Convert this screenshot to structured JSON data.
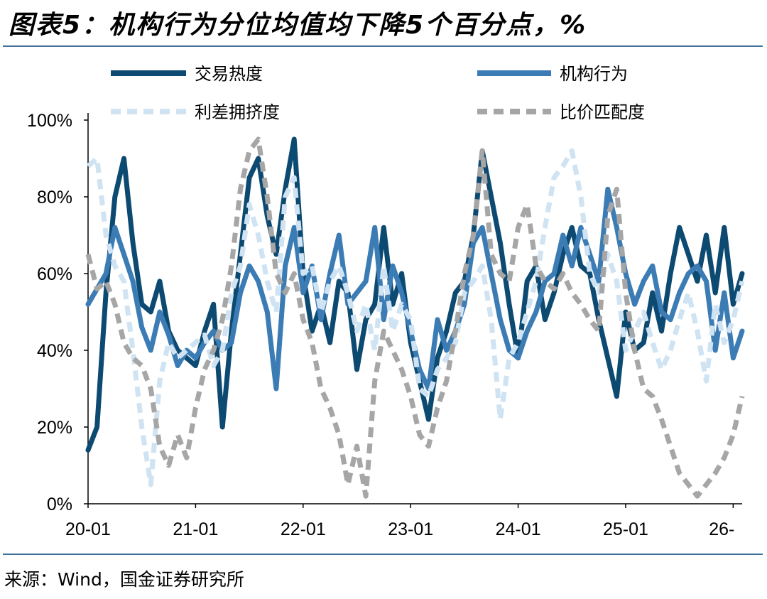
{
  "title": "图表5：机构行为分位均值均下降5个百分点，%",
  "source": "来源：Wind，国金证券研究所",
  "chart_data": {
    "type": "line",
    "title": "图表5：机构行为分位均值均下降5个百分点，%",
    "ylim": [
      0,
      100
    ],
    "xlim": [
      0,
      73
    ],
    "x_start": "2020-01",
    "y_ticks": [
      "0%",
      "20%",
      "40%",
      "60%",
      "80%",
      "100%"
    ],
    "x_ticks": [
      {
        "label": "20-01",
        "x": 0
      },
      {
        "label": "21-01",
        "x": 12
      },
      {
        "label": "22-01",
        "x": 24
      },
      {
        "label": "23-01",
        "x": 36
      },
      {
        "label": "24-01",
        "x": 48
      },
      {
        "label": "25-01",
        "x": 60
      },
      {
        "label": "26-",
        "x": 72
      }
    ],
    "legend_position": "top",
    "grid": false,
    "series": [
      {
        "name": "交易热度",
        "color": "#0d4a72",
        "style": "solid",
        "x": [
          0,
          1,
          2,
          3,
          4,
          5,
          6,
          7,
          8,
          9,
          10,
          11,
          12,
          13,
          14,
          15,
          16,
          17,
          18,
          19,
          20,
          21,
          22,
          23,
          24,
          25,
          26,
          27,
          28,
          29,
          30,
          31,
          32,
          33,
          34,
          35,
          36,
          37,
          38,
          39,
          40,
          41,
          42,
          43,
          44,
          45,
          46,
          47,
          48,
          49,
          50,
          51,
          52,
          53,
          54,
          55,
          56,
          57,
          58,
          59,
          60,
          61,
          62,
          63,
          64,
          65,
          66,
          67,
          68,
          69,
          70,
          71,
          72,
          73
        ],
        "values": [
          14,
          20,
          55,
          80,
          90,
          68,
          52,
          50,
          58,
          45,
          40,
          38,
          36,
          45,
          52,
          20,
          45,
          65,
          85,
          90,
          75,
          65,
          82,
          95,
          60,
          45,
          52,
          42,
          58,
          55,
          35,
          48,
          52,
          72,
          52,
          60,
          42,
          32,
          22,
          38,
          45,
          55,
          58,
          70,
          92,
          80,
          68,
          52,
          38,
          58,
          62,
          48,
          55,
          65,
          72,
          62,
          60,
          48,
          38,
          28,
          50,
          40,
          42,
          55,
          45,
          60,
          72,
          65,
          58,
          70,
          55,
          72,
          52,
          60
        ]
      },
      {
        "name": "机构行为",
        "color": "#3c7cb5",
        "style": "solid",
        "x": [
          0,
          1,
          2,
          3,
          4,
          5,
          6,
          7,
          8,
          9,
          10,
          11,
          12,
          13,
          14,
          15,
          16,
          17,
          18,
          19,
          20,
          21,
          22,
          23,
          24,
          25,
          26,
          27,
          28,
          29,
          30,
          31,
          32,
          33,
          34,
          35,
          36,
          37,
          38,
          39,
          40,
          41,
          42,
          43,
          44,
          45,
          46,
          47,
          48,
          49,
          50,
          51,
          52,
          53,
          54,
          55,
          56,
          57,
          58,
          59,
          60,
          61,
          62,
          63,
          64,
          65,
          66,
          67,
          68,
          69,
          70,
          71,
          72,
          73
        ],
        "values": [
          52,
          56,
          60,
          72,
          65,
          58,
          46,
          40,
          50,
          44,
          36,
          40,
          38,
          42,
          45,
          40,
          42,
          55,
          62,
          58,
          50,
          30,
          62,
          72,
          55,
          62,
          48,
          60,
          70,
          52,
          55,
          58,
          72,
          48,
          62,
          55,
          45,
          35,
          30,
          48,
          40,
          45,
          52,
          68,
          72,
          60,
          48,
          40,
          38,
          45,
          50,
          58,
          60,
          70,
          62,
          72,
          65,
          58,
          82,
          72,
          60,
          52,
          58,
          62,
          50,
          48,
          55,
          60,
          62,
          58,
          40,
          55,
          38,
          45
        ]
      },
      {
        "name": "利差拥挤度",
        "color": "#cfe3f3",
        "style": "dashed",
        "x": [
          0,
          1,
          2,
          3,
          4,
          5,
          6,
          7,
          8,
          9,
          10,
          11,
          12,
          13,
          14,
          15,
          16,
          17,
          18,
          19,
          20,
          21,
          22,
          23,
          24,
          25,
          26,
          27,
          28,
          29,
          30,
          31,
          32,
          33,
          34,
          35,
          36,
          37,
          38,
          39,
          40,
          41,
          42,
          43,
          44,
          45,
          46,
          47,
          48,
          49,
          50,
          51,
          52,
          53,
          54,
          55,
          56,
          57,
          58,
          59,
          60,
          61,
          62,
          63,
          64,
          65,
          66,
          67,
          68,
          69,
          70,
          71,
          72,
          73
        ],
        "values": [
          88,
          90,
          70,
          62,
          58,
          40,
          20,
          5,
          32,
          42,
          38,
          40,
          42,
          44,
          36,
          40,
          55,
          62,
          78,
          70,
          58,
          50,
          80,
          85,
          60,
          62,
          50,
          58,
          62,
          55,
          45,
          52,
          40,
          62,
          45,
          52,
          48,
          30,
          28,
          35,
          38,
          42,
          55,
          58,
          62,
          48,
          22,
          38,
          42,
          50,
          58,
          72,
          85,
          88,
          92,
          80,
          60,
          55,
          65,
          58,
          40,
          45,
          50,
          42,
          35,
          40,
          48,
          55,
          45,
          32,
          52,
          42,
          48,
          58
        ]
      },
      {
        "name": "比价匹配度",
        "color": "#a6a6a6",
        "style": "dashed",
        "x": [
          0,
          1,
          2,
          3,
          4,
          5,
          6,
          7,
          8,
          9,
          10,
          11,
          12,
          13,
          14,
          15,
          16,
          17,
          18,
          19,
          20,
          21,
          22,
          23,
          24,
          25,
          26,
          27,
          28,
          29,
          30,
          31,
          32,
          33,
          34,
          35,
          36,
          37,
          38,
          39,
          40,
          41,
          42,
          43,
          44,
          45,
          46,
          47,
          48,
          49,
          50,
          51,
          52,
          53,
          54,
          55,
          56,
          57,
          58,
          59,
          60,
          61,
          62,
          63,
          64,
          65,
          66,
          67,
          68,
          69,
          70,
          71,
          72,
          73
        ],
        "values": [
          65,
          56,
          58,
          52,
          42,
          38,
          36,
          30,
          15,
          10,
          18,
          12,
          25,
          35,
          40,
          48,
          62,
          82,
          92,
          95,
          80,
          60,
          55,
          60,
          48,
          42,
          30,
          25,
          18,
          5,
          15,
          2,
          32,
          45,
          40,
          35,
          28,
          18,
          15,
          25,
          32,
          45,
          60,
          70,
          92,
          65,
          60,
          58,
          72,
          78,
          62,
          58,
          56,
          60,
          55,
          52,
          48,
          45,
          75,
          82,
          55,
          40,
          30,
          28,
          22,
          15,
          8,
          5,
          2,
          5,
          8,
          12,
          18,
          28
        ]
      }
    ]
  }
}
